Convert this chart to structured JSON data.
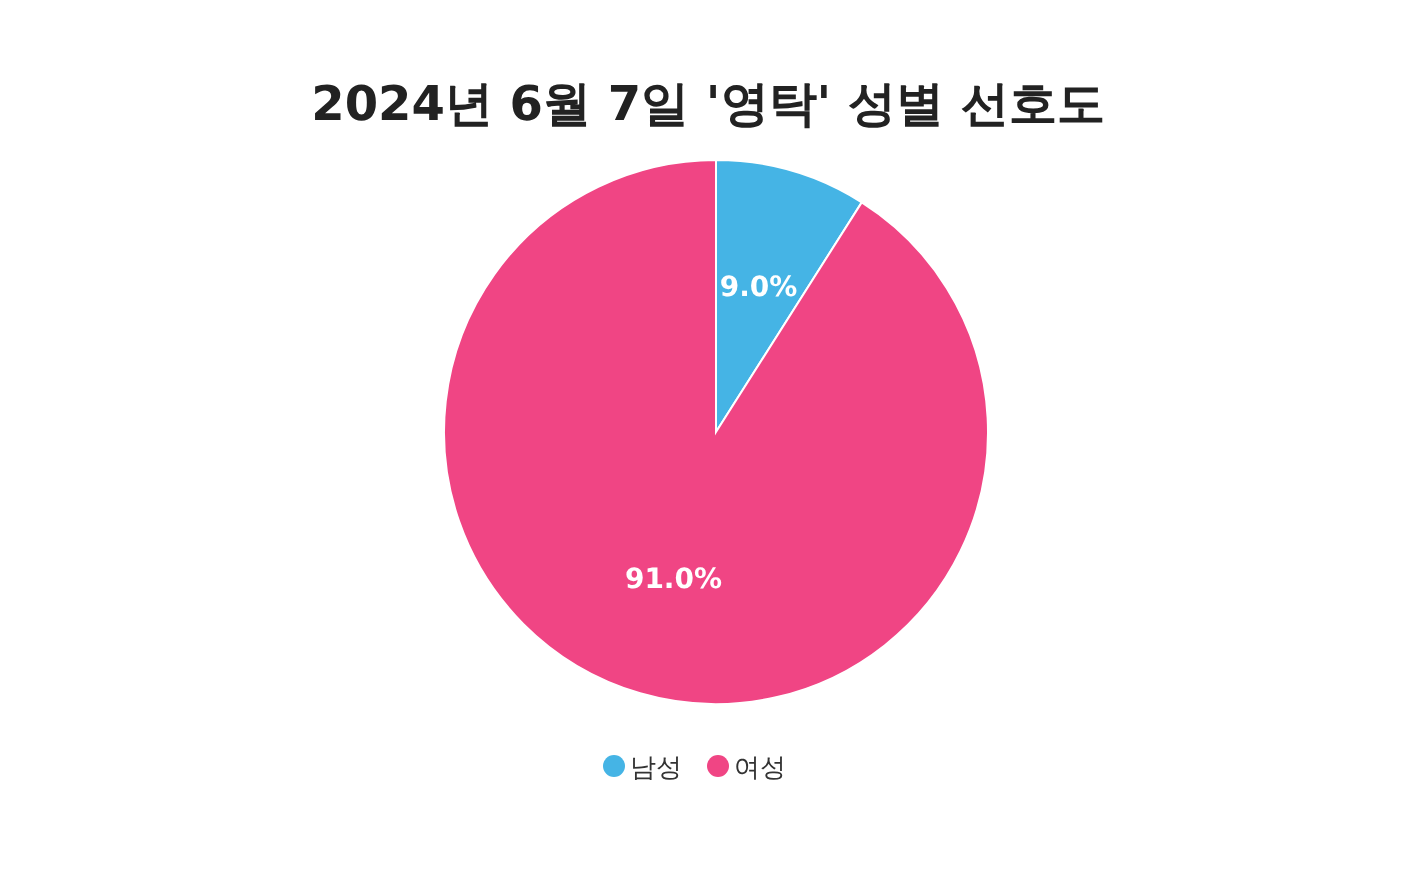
{
  "chart_data": {
    "type": "pie",
    "title": "2024년 6월 7일 '영탁' 성별 선호도",
    "categories": [
      "남성",
      "여성"
    ],
    "values": [
      9.0,
      91.0
    ],
    "colors": [
      "#45b4e5",
      "#f04584"
    ],
    "value_labels": [
      "9.0%",
      "91.0%"
    ],
    "legend": "bottom"
  }
}
